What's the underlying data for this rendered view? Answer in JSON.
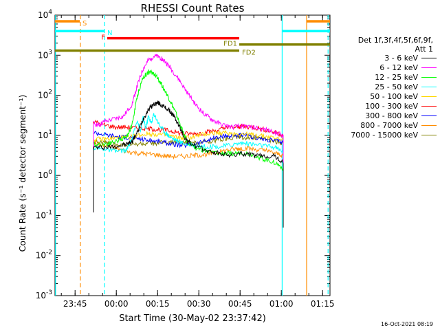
{
  "chart_data": {
    "type": "line",
    "title": "RHESSI Count Rates",
    "xlabel": "Start Time (30-May-02 23:37:42)",
    "ylabel": "Count Rate (s⁻¹ detector segment⁻¹)",
    "yscale": "log",
    "xlim_minutes": [
      0,
      100
    ],
    "ylim": [
      0.001,
      10000
    ],
    "x_ticks": [
      {
        "label": "23:45",
        "minute": 7.3
      },
      {
        "label": "00:00",
        "minute": 22.3
      },
      {
        "label": "00:15",
        "minute": 37.3
      },
      {
        "label": "00:30",
        "minute": 52.3
      },
      {
        "label": "00:45",
        "minute": 67.3
      },
      {
        "label": "01:00",
        "minute": 82.3
      },
      {
        "label": "01:15",
        "minute": 97.3
      }
    ],
    "y_ticks": [
      {
        "base": "10",
        "exp": "-3",
        "value": 0.001
      },
      {
        "base": "10",
        "exp": "-2",
        "value": 0.01
      },
      {
        "base": "10",
        "exp": "-1",
        "value": 0.1
      },
      {
        "base": "10",
        "exp": "0",
        "value": 1
      },
      {
        "base": "10",
        "exp": "1",
        "value": 10
      },
      {
        "base": "10",
        "exp": "2",
        "value": 100
      },
      {
        "base": "10",
        "exp": "3",
        "value": 1000
      },
      {
        "base": "10",
        "exp": "4",
        "value": 10000
      }
    ],
    "series": [
      {
        "name": "3 - 6 keV",
        "color": "#000000",
        "points": [
          [
            14,
            5
          ],
          [
            18,
            5
          ],
          [
            22,
            5.3
          ],
          [
            26,
            6
          ],
          [
            28,
            7
          ],
          [
            30,
            12
          ],
          [
            32,
            25
          ],
          [
            34,
            45
          ],
          [
            36,
            60
          ],
          [
            37.5,
            65
          ],
          [
            39,
            55
          ],
          [
            41,
            45
          ],
          [
            43,
            32
          ],
          [
            45,
            18
          ],
          [
            47,
            9
          ],
          [
            49,
            6.5
          ],
          [
            52,
            5
          ],
          [
            56,
            4
          ],
          [
            60,
            3.5
          ],
          [
            64,
            3.2
          ],
          [
            68,
            3.5
          ],
          [
            72,
            3.2
          ],
          [
            76,
            3
          ],
          [
            80,
            3
          ],
          [
            83,
            2
          ]
        ]
      },
      {
        "name": "6 - 12 keV",
        "color": "#ff00ff",
        "points": [
          [
            14,
            20
          ],
          [
            16,
            18
          ],
          [
            18,
            22
          ],
          [
            22,
            26
          ],
          [
            25,
            30
          ],
          [
            28,
            60
          ],
          [
            30,
            180
          ],
          [
            32,
            450
          ],
          [
            34,
            750
          ],
          [
            36,
            950
          ],
          [
            38,
            900
          ],
          [
            40,
            700
          ],
          [
            42,
            480
          ],
          [
            45,
            250
          ],
          [
            48,
            120
          ],
          [
            51,
            60
          ],
          [
            54,
            35
          ],
          [
            57,
            25
          ],
          [
            60,
            19
          ],
          [
            64,
            16
          ],
          [
            68,
            17
          ],
          [
            72,
            16
          ],
          [
            76,
            14
          ],
          [
            80,
            12
          ],
          [
            83,
            10
          ]
        ]
      },
      {
        "name": "12 - 25 keV",
        "color": "#00ff00",
        "points": [
          [
            14,
            6
          ],
          [
            18,
            6
          ],
          [
            22,
            7
          ],
          [
            26,
            9
          ],
          [
            28,
            18
          ],
          [
            30,
            100
          ],
          [
            32,
            280
          ],
          [
            34,
            380
          ],
          [
            36,
            350
          ],
          [
            38,
            230
          ],
          [
            40,
            130
          ],
          [
            42,
            70
          ],
          [
            44,
            35
          ],
          [
            46,
            15
          ],
          [
            48,
            7
          ],
          [
            51,
            5
          ],
          [
            55,
            4
          ],
          [
            60,
            3.5
          ],
          [
            64,
            3.5
          ],
          [
            68,
            3.7
          ],
          [
            72,
            3.3
          ],
          [
            76,
            2.5
          ],
          [
            80,
            2.1
          ],
          [
            83,
            1.5
          ]
        ]
      },
      {
        "name": "25 - 50 keV",
        "color": "#00ffff",
        "points": [
          [
            14,
            5
          ],
          [
            18,
            4.5
          ],
          [
            22,
            4
          ],
          [
            26,
            4.2
          ],
          [
            28,
            8
          ],
          [
            30,
            25
          ],
          [
            31,
            12
          ],
          [
            32,
            28
          ],
          [
            33,
            15
          ],
          [
            34,
            30
          ],
          [
            35,
            20
          ],
          [
            36,
            35
          ],
          [
            38,
            18
          ],
          [
            40,
            12
          ],
          [
            42,
            9
          ],
          [
            45,
            7
          ],
          [
            48,
            6
          ],
          [
            52,
            5.5
          ],
          [
            56,
            5.2
          ],
          [
            60,
            5.2
          ],
          [
            64,
            5.8
          ],
          [
            68,
            6.5
          ],
          [
            72,
            6
          ],
          [
            76,
            5.5
          ],
          [
            80,
            5
          ],
          [
            83,
            4
          ]
        ]
      },
      {
        "name": "50 - 100 keV",
        "color": "#ffd700",
        "points": [
          [
            14,
            8
          ],
          [
            18,
            8
          ],
          [
            22,
            8.5
          ],
          [
            26,
            8.8
          ],
          [
            30,
            10
          ],
          [
            34,
            11
          ],
          [
            38,
            10.5
          ],
          [
            42,
            9.5
          ],
          [
            46,
            8.5
          ],
          [
            50,
            9
          ],
          [
            54,
            10.5
          ],
          [
            58,
            11.5
          ],
          [
            62,
            11.5
          ],
          [
            66,
            11
          ],
          [
            70,
            10.5
          ],
          [
            74,
            10
          ],
          [
            78,
            9
          ],
          [
            83,
            8
          ]
        ]
      },
      {
        "name": "100 - 300 keV",
        "color": "#ff0000",
        "points": [
          [
            14,
            22
          ],
          [
            18,
            18
          ],
          [
            22,
            16
          ],
          [
            26,
            16
          ],
          [
            30,
            15
          ],
          [
            34,
            14.5
          ],
          [
            38,
            14
          ],
          [
            42,
            13
          ],
          [
            46,
            11
          ],
          [
            50,
            11
          ],
          [
            54,
            11.5
          ],
          [
            58,
            13
          ],
          [
            62,
            15
          ],
          [
            66,
            16
          ],
          [
            68,
            17
          ],
          [
            72,
            16
          ],
          [
            76,
            14
          ],
          [
            80,
            12
          ],
          [
            83,
            10
          ]
        ]
      },
      {
        "name": "300 - 800 keV",
        "color": "#0000ff",
        "points": [
          [
            14,
            12
          ],
          [
            18,
            10.5
          ],
          [
            22,
            9.5
          ],
          [
            26,
            9
          ],
          [
            30,
            8.5
          ],
          [
            34,
            7.5
          ],
          [
            38,
            7
          ],
          [
            42,
            6.2
          ],
          [
            46,
            5.5
          ],
          [
            50,
            6
          ],
          [
            54,
            7
          ],
          [
            58,
            8.5
          ],
          [
            62,
            9.5
          ],
          [
            66,
            10
          ],
          [
            68,
            10
          ],
          [
            72,
            9
          ],
          [
            76,
            8
          ],
          [
            80,
            7.5
          ],
          [
            83,
            7
          ]
        ]
      },
      {
        "name": "800 - 7000 keV",
        "color": "#ff8c00",
        "points": [
          [
            14,
            6.5
          ],
          [
            18,
            5.5
          ],
          [
            22,
            4.8
          ],
          [
            26,
            4
          ],
          [
            30,
            3.6
          ],
          [
            34,
            3.4
          ],
          [
            38,
            3.2
          ],
          [
            42,
            3
          ],
          [
            46,
            3
          ],
          [
            50,
            3.1
          ],
          [
            54,
            3.3
          ],
          [
            58,
            3.6
          ],
          [
            62,
            4.2
          ],
          [
            66,
            4.6
          ],
          [
            68,
            4.8
          ],
          [
            72,
            4.5
          ],
          [
            76,
            4.2
          ],
          [
            80,
            3.6
          ],
          [
            83,
            3.2
          ]
        ]
      },
      {
        "name": "7000 - 15000 keV",
        "color": "#808000",
        "points": [
          [
            14,
            7
          ],
          [
            18,
            6.5
          ],
          [
            22,
            6
          ],
          [
            26,
            5.8
          ],
          [
            30,
            6
          ],
          [
            34,
            6.2
          ],
          [
            38,
            6.5
          ],
          [
            42,
            6.8
          ],
          [
            46,
            6.5
          ],
          [
            50,
            6.5
          ],
          [
            54,
            6.8
          ],
          [
            58,
            7.5
          ],
          [
            62,
            8.5
          ],
          [
            66,
            9
          ],
          [
            68,
            9
          ],
          [
            72,
            8.5
          ],
          [
            76,
            8
          ],
          [
            80,
            7
          ],
          [
            83,
            6.5
          ]
        ]
      }
    ],
    "attenuator_bars": [
      {
        "label": "S",
        "label_color": "#ff8c00",
        "color": "#ff8c00",
        "y": 7000,
        "segments": [
          [
            0,
            9
          ]
        ],
        "label_side": "end"
      },
      {
        "label": "S",
        "label_color": "#ff8c00",
        "color": "#ff8c00",
        "y": 7000,
        "segments": [
          [
            91.5,
            100
          ]
        ],
        "label_side": "none"
      },
      {
        "label": "N",
        "label_color": "#00ffff",
        "color": "#00ffff",
        "y": 4000,
        "segments": [
          [
            0,
            18
          ]
        ],
        "label_side": "end"
      },
      {
        "label": "N",
        "label_color": "#00ffff",
        "color": "#00ffff",
        "y": 4000,
        "segments": [
          [
            82.6,
            100
          ]
        ],
        "label_side": "none"
      },
      {
        "label": "F",
        "label_color": "#ff0000",
        "color": "#ff0000",
        "y": 2650,
        "segments": [
          [
            19,
            67
          ]
        ],
        "label_side": "start"
      },
      {
        "label": "FD1",
        "label_color": "#808000",
        "color": "#808000",
        "y": 1850,
        "segments": [
          [
            67,
            100
          ]
        ],
        "label_side": "start"
      },
      {
        "label": "FD2",
        "label_color": "#808000",
        "color": "#808000",
        "y": 1300,
        "segments": [
          [
            0,
            67
          ]
        ],
        "label_side": "end"
      }
    ],
    "vertical_lines": [
      {
        "minute": 0.2,
        "color": "#00ffff",
        "dashed": false
      },
      {
        "minute": 9.2,
        "color": "#ff8c00",
        "dashed": true
      },
      {
        "minute": 18,
        "color": "#00ffff",
        "dashed": true
      },
      {
        "minute": 82.6,
        "color": "#00ffff",
        "dashed": false
      },
      {
        "minute": 91.5,
        "color": "#ff8c00",
        "dashed": false
      },
      {
        "minute": 99.3,
        "color": "#00ffff",
        "dashed": true
      }
    ]
  },
  "legend": {
    "header_line1": "Det 1f,3f,4f,5f,6f,9f,",
    "header_line2": "Att 1",
    "items": [
      {
        "label": "3 - 6 keV",
        "color": "#000000"
      },
      {
        "label": "6 - 12 keV",
        "color": "#ff00ff"
      },
      {
        "label": "12 - 25 keV",
        "color": "#00ff00"
      },
      {
        "label": "25 - 50 keV",
        "color": "#00ffff"
      },
      {
        "label": "50 - 100 keV",
        "color": "#ffd700"
      },
      {
        "label": "100 - 300 keV",
        "color": "#ff0000"
      },
      {
        "label": "300 - 800 keV",
        "color": "#0000ff"
      },
      {
        "label": "800 - 7000 keV",
        "color": "#ff8c00"
      },
      {
        "label": "7000 - 15000 keV",
        "color": "#808000"
      }
    ]
  },
  "timestamp": "16-Oct-2021 08:19"
}
